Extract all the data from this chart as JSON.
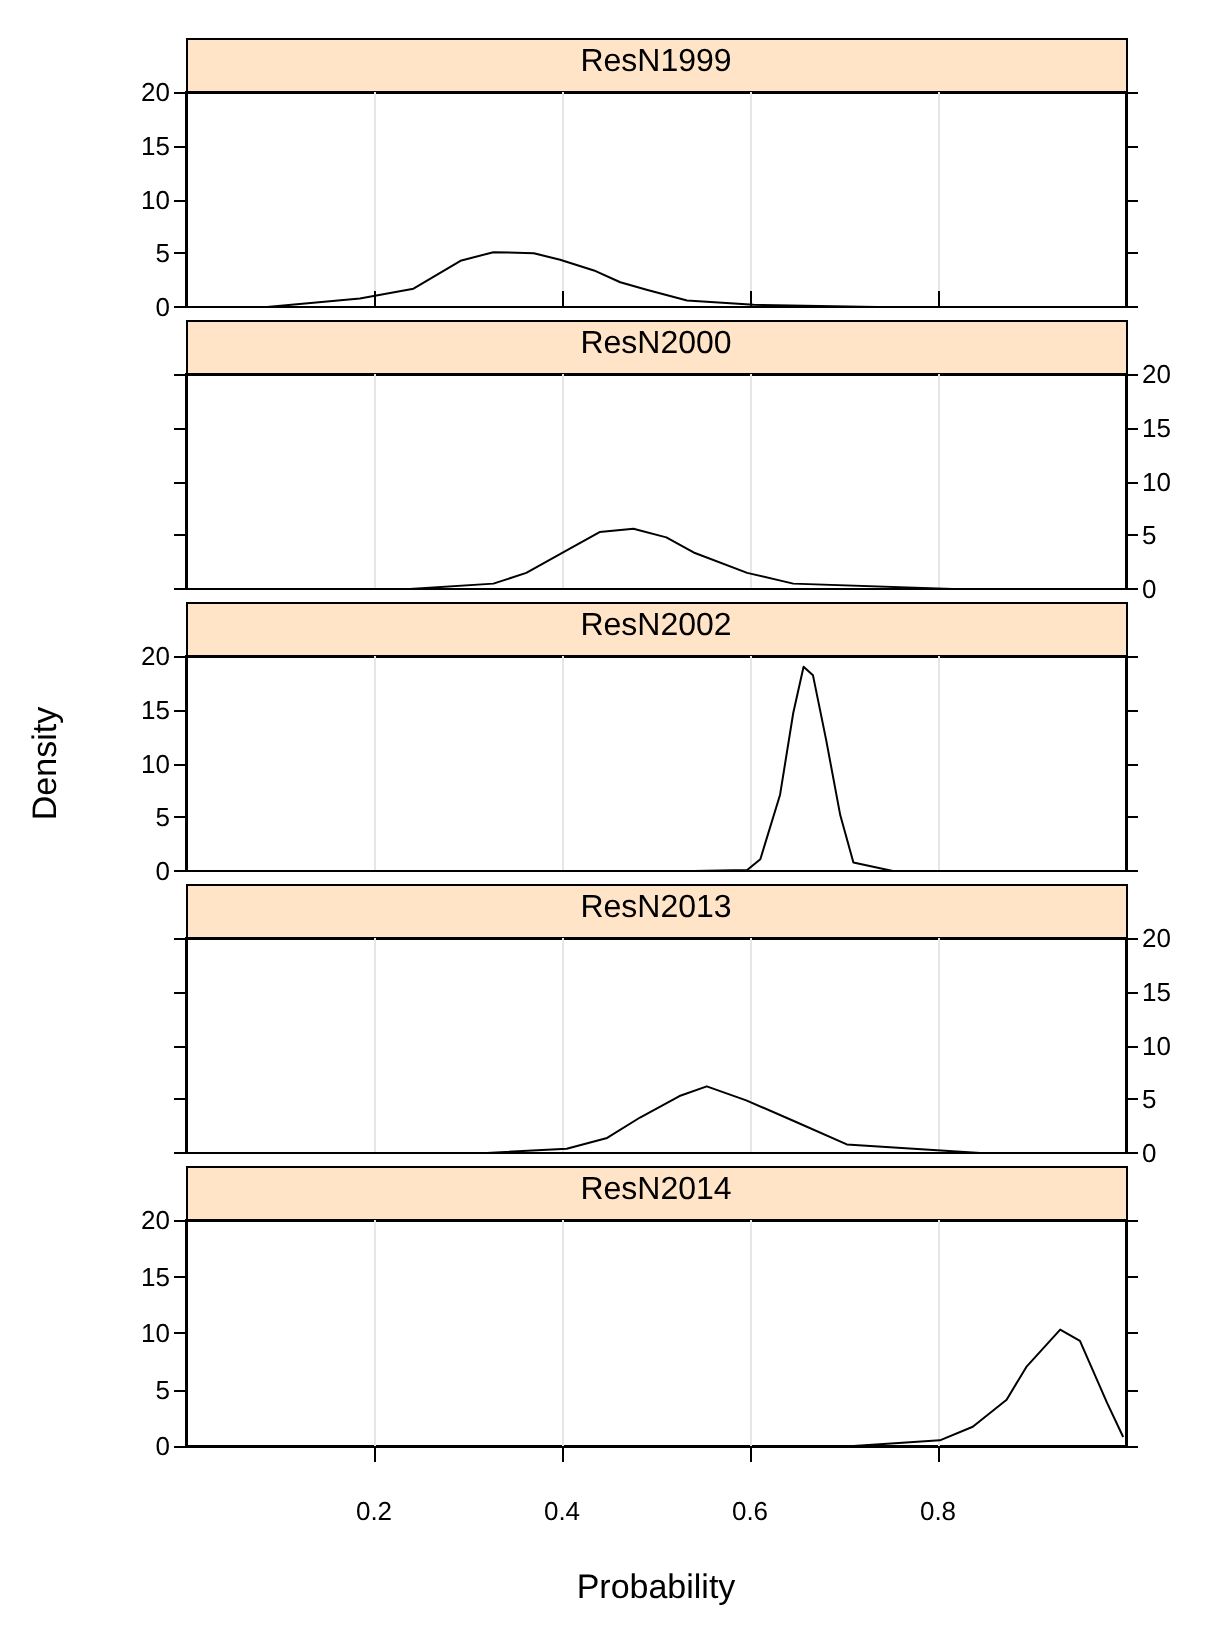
{
  "chart_data": [
    {
      "type": "line",
      "title": "ResN1999",
      "x": [
        0.086,
        0.185,
        0.242,
        0.292,
        0.327,
        0.37,
        0.398,
        0.434,
        0.462,
        0.49,
        0.533,
        0.604,
        0.735
      ],
      "series": [
        {
          "color": "#000000",
          "values": [
            0,
            0.8,
            1.7,
            4.3,
            5.1,
            5.0,
            4.4,
            3.4,
            2.3,
            1.6,
            0.6,
            0.2,
            0
          ]
        }
      ],
      "xlim": [
        0,
        1
      ],
      "ylim": [
        0,
        20
      ],
      "yticks": [
        0,
        5,
        10,
        15,
        20
      ],
      "grid": "x",
      "marker": "none",
      "tick_labels": "y"
    },
    {
      "type": "line",
      "title": "ResN2000",
      "x": [
        0.238,
        0.327,
        0.362,
        0.405,
        0.44,
        0.476,
        0.511,
        0.54,
        0.597,
        0.646,
        0.816
      ],
      "series": [
        {
          "color": "#000000",
          "axis": "y2",
          "values": [
            0,
            0.5,
            1.5,
            3.6,
            5.3,
            5.6,
            4.8,
            3.4,
            1.5,
            0.5,
            0
          ]
        }
      ],
      "xlim": [
        0,
        1
      ],
      "y2lim": [
        0,
        20
      ],
      "y2ticks": [
        0,
        5,
        10,
        15,
        20
      ],
      "grid": "x",
      "marker": "none"
    },
    {
      "type": "line",
      "title": "ResN2002",
      "ylabel": "Density",
      "x": [
        0.54,
        0.597,
        0.611,
        0.632,
        0.646,
        0.657,
        0.667,
        0.681,
        0.696,
        0.71,
        0.752
      ],
      "series": [
        {
          "color": "#000000",
          "values": [
            0,
            0.1,
            1.1,
            7.1,
            14.7,
            19.0,
            18.2,
            12.2,
            5.2,
            0.8,
            0
          ]
        }
      ],
      "xlim": [
        0,
        1
      ],
      "ylim": [
        0,
        20
      ],
      "yticks": [
        0,
        5,
        10,
        15,
        20
      ],
      "grid": "x",
      "marker": "none",
      "tick_labels": "y"
    },
    {
      "type": "line",
      "title": "ResN2013",
      "x": [
        0.32,
        0.405,
        0.448,
        0.483,
        0.525,
        0.554,
        0.596,
        0.646,
        0.703,
        0.845
      ],
      "series": [
        {
          "color": "#000000",
          "axis": "y2",
          "values": [
            0,
            0.4,
            1.4,
            3.3,
            5.3,
            6.2,
            4.9,
            3.0,
            0.8,
            0
          ]
        }
      ],
      "xlim": [
        0,
        1
      ],
      "y2lim": [
        0,
        20
      ],
      "y2ticks": [
        0,
        5,
        10,
        15,
        20
      ],
      "grid": "x",
      "marker": "none"
    },
    {
      "type": "line",
      "title": "ResN2014",
      "xlabel": "Probability",
      "x": [
        0.71,
        0.802,
        0.837,
        0.873,
        0.894,
        0.93,
        0.951,
        0.98,
        0.997
      ],
      "series": [
        {
          "color": "#000000",
          "values": [
            0,
            0.5,
            1.7,
            4.1,
            7.0,
            10.3,
            9.3,
            3.8,
            0.8
          ]
        }
      ],
      "xlim": [
        0,
        1
      ],
      "xticks": [
        0.2,
        0.4,
        0.6,
        0.8
      ],
      "ylim": [
        0,
        20
      ],
      "yticks": [
        0,
        5,
        10,
        15,
        20
      ],
      "grid": "x",
      "marker": "none"
    }
  ]
}
